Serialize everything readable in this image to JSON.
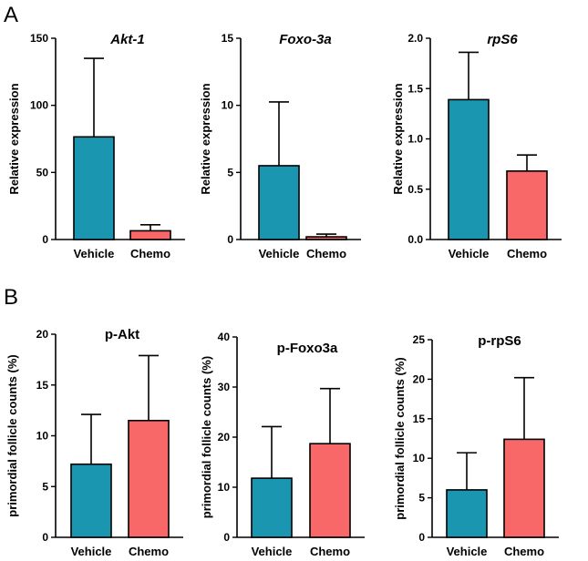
{
  "panels": [
    {
      "letter": "A"
    },
    {
      "letter": "B"
    }
  ],
  "colors": {
    "vehicle": "#1a96b0",
    "chemo": "#f86868"
  },
  "chart_data": [
    {
      "type": "bar",
      "title": "Akt-1",
      "title_italic": true,
      "ylabel": "Relative expression",
      "categories": [
        "Vehicle",
        "Chemo"
      ],
      "values": [
        76.5,
        6.5
      ],
      "errors": [
        58.5,
        4.5
      ],
      "ylim": [
        0,
        150
      ],
      "yticks": [
        0,
        50,
        100,
        150
      ],
      "ytick_labels": [
        "0",
        "50",
        "100",
        "150"
      ]
    },
    {
      "type": "bar",
      "title": "Foxo-3a",
      "title_italic": true,
      "ylabel": "Relative expression",
      "categories": [
        "Vehicle",
        "Chemo"
      ],
      "values": [
        5.5,
        0.2
      ],
      "errors": [
        4.75,
        0.2
      ],
      "ylim": [
        0,
        15
      ],
      "yticks": [
        0,
        5,
        10,
        15
      ],
      "ytick_labels": [
        "0",
        "5",
        "10",
        "15"
      ]
    },
    {
      "type": "bar",
      "title": "rpS6",
      "title_italic": true,
      "ylabel": "Relative expression",
      "categories": [
        "Vehicle",
        "Chemo"
      ],
      "values": [
        1.39,
        0.68
      ],
      "errors": [
        0.47,
        0.16
      ],
      "ylim": [
        0,
        2.0
      ],
      "yticks": [
        0,
        0.5,
        1.0,
        1.5,
        2.0
      ],
      "ytick_labels": [
        "0.0",
        "0.5",
        "1.0",
        "1.5",
        "2.0"
      ]
    },
    {
      "type": "bar",
      "title": "p-Akt",
      "title_italic": false,
      "ylabel": "primordial follicle counts (%)",
      "categories": [
        "Vehicle",
        "Chemo"
      ],
      "values": [
        7.2,
        11.5
      ],
      "errors": [
        4.9,
        6.4
      ],
      "ylim": [
        0,
        20
      ],
      "yticks": [
        0,
        5,
        10,
        15,
        20
      ],
      "ytick_labels": [
        "0",
        "5",
        "10",
        "15",
        "20"
      ]
    },
    {
      "type": "bar",
      "title": "p-Foxo3a",
      "title_italic": false,
      "ylabel": "primordial follicle counts (%)",
      "categories": [
        "Vehicle",
        "Chemo"
      ],
      "values": [
        11.8,
        18.7
      ],
      "errors": [
        10.3,
        11.0
      ],
      "ylim": [
        0,
        40
      ],
      "yticks": [
        0,
        10,
        20,
        30,
        40
      ],
      "ytick_labels": [
        "0",
        "10",
        "20",
        "30",
        "40"
      ]
    },
    {
      "type": "bar",
      "title": "p-rpS6",
      "title_italic": false,
      "ylabel": "primordial follicle counts (%)",
      "categories": [
        "Vehicle",
        "Chemo"
      ],
      "values": [
        6.0,
        12.4
      ],
      "errors": [
        4.7,
        7.8
      ],
      "ylim": [
        0,
        25
      ],
      "yticks": [
        0,
        5,
        10,
        15,
        20,
        25
      ],
      "ytick_labels": [
        "0",
        "5",
        "10",
        "15",
        "20",
        "25"
      ]
    }
  ]
}
